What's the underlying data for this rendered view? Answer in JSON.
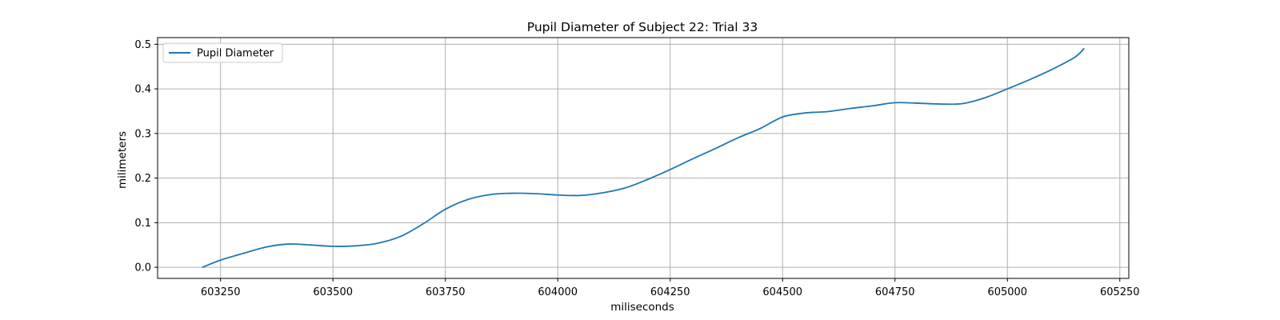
{
  "chart_data": {
    "type": "line",
    "title": "Pupil Diameter of Subject 22: Trial 33",
    "xlabel": "miliseconds",
    "ylabel": "milimeters",
    "xlim": [
      603110,
      605270
    ],
    "ylim": [
      -0.025,
      0.515
    ],
    "xticks": [
      603250,
      603500,
      603750,
      604000,
      604250,
      604500,
      604750,
      605000,
      605250
    ],
    "yticks": [
      0.0,
      0.1,
      0.2,
      0.3,
      0.4,
      0.5
    ],
    "ytick_labels": [
      "0.0",
      "0.1",
      "0.2",
      "0.3",
      "0.4",
      "0.5"
    ],
    "grid": true,
    "legend_position": "upper-left",
    "series": [
      {
        "name": "Pupil Diameter",
        "color": "#1f77b4",
        "x": [
          603210,
          603250,
          603300,
          603350,
          603400,
          603450,
          603500,
          603550,
          603600,
          603650,
          603700,
          603750,
          603800,
          603850,
          603900,
          603950,
          604000,
          604050,
          604100,
          604150,
          604200,
          604250,
          604300,
          604350,
          604400,
          604450,
          604500,
          604550,
          604600,
          604650,
          604700,
          604750,
          604800,
          604850,
          604900,
          604950,
          605000,
          605050,
          605100,
          605150,
          605170
        ],
        "y": [
          0.0,
          0.016,
          0.031,
          0.045,
          0.052,
          0.05,
          0.047,
          0.048,
          0.054,
          0.069,
          0.097,
          0.13,
          0.152,
          0.163,
          0.166,
          0.165,
          0.162,
          0.161,
          0.167,
          0.178,
          0.197,
          0.219,
          0.243,
          0.266,
          0.29,
          0.311,
          0.337,
          0.346,
          0.349,
          0.356,
          0.362,
          0.369,
          0.368,
          0.366,
          0.367,
          0.38,
          0.4,
          0.421,
          0.444,
          0.471,
          0.49
        ]
      }
    ]
  }
}
